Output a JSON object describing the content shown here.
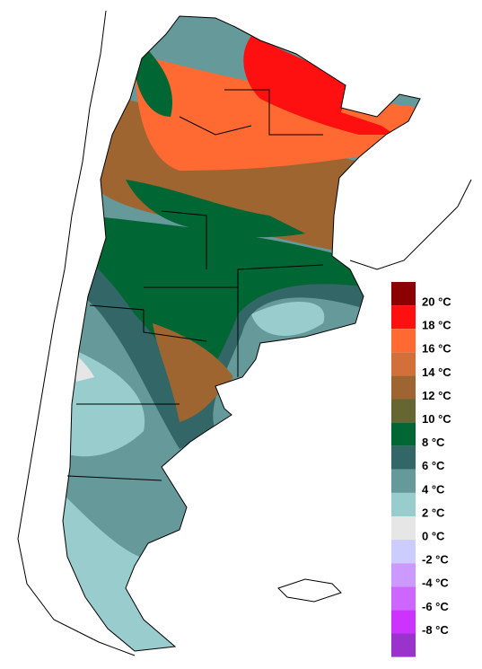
{
  "legend": {
    "labels": [
      "20 °C",
      "18 °C",
      "16 °C",
      "14 °C",
      "12 °C",
      "10 °C",
      "8 °C",
      "6 °C",
      "4 °C",
      "2 °C",
      "0 °C",
      "-2 °C",
      "-4 °C",
      "-6 °C",
      "-8 °C"
    ],
    "colors": [
      "#8b0000",
      "#ff1010",
      "#ff6a33",
      "#d2703a",
      "#9e6530",
      "#666633",
      "#006633",
      "#336666",
      "#669999",
      "#99cccc",
      "#e6e6e6",
      "#ccccff",
      "#cc99ff",
      "#cc66ff",
      "#cc33ff",
      "#9933cc"
    ]
  }
}
